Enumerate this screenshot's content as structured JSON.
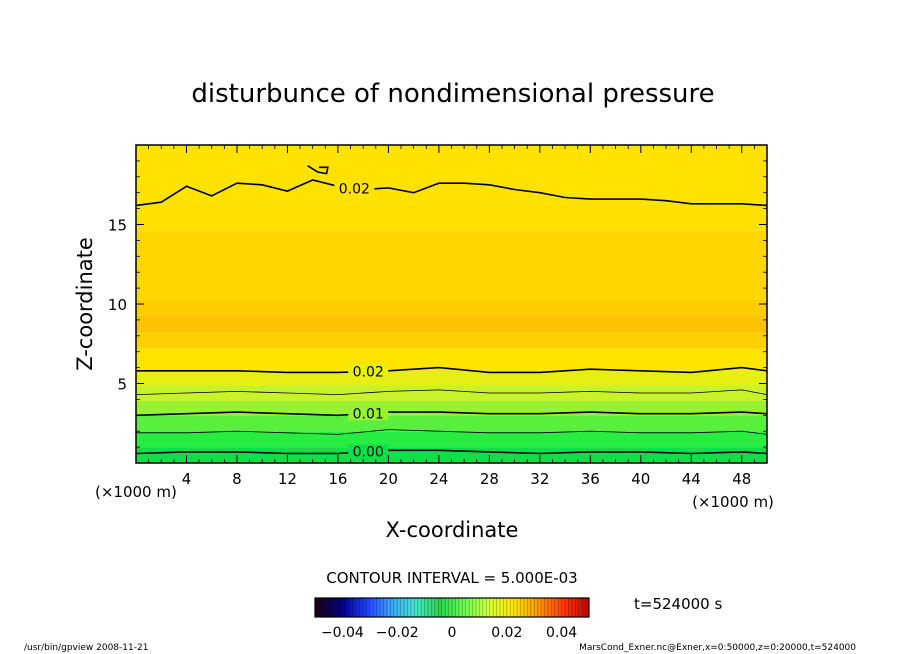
{
  "chart_data": {
    "type": "contour",
    "title": "disturbunce of nondimensional pressure",
    "xlabel": "X-coordinate",
    "ylabel": "Z-coordinate",
    "x_unit": "(×1000 m)",
    "y_unit": "(×1000 m)",
    "xlim": [
      0,
      50
    ],
    "ylim": [
      0,
      20
    ],
    "x_ticks": [
      4,
      8,
      12,
      16,
      20,
      24,
      28,
      32,
      36,
      40,
      44,
      48
    ],
    "y_ticks": [
      5,
      10,
      15
    ],
    "contour_interval_text": "CONTOUR INTERVAL = 5.000E-03",
    "time_label": "t=524000 s",
    "colorbar": {
      "labels": [
        "−0.04",
        "−0.02",
        "0",
        "0.02",
        "0.04"
      ],
      "colors": [
        "#1a001a",
        "#000080",
        "#1e3cff",
        "#3ca0ff",
        "#46e6d2",
        "#2ad24a",
        "#64ff50",
        "#d2ff3c",
        "#ffe600",
        "#ff9600",
        "#ff3c00",
        "#c80000"
      ]
    },
    "fill_bands": [
      {
        "z_from": 0.0,
        "z_to": 1.0,
        "color": "#0ee04a"
      },
      {
        "z_from": 1.0,
        "z_to": 2.0,
        "color": "#28ec42"
      },
      {
        "z_from": 2.0,
        "z_to": 3.0,
        "color": "#58f03c"
      },
      {
        "z_from": 3.0,
        "z_to": 3.9,
        "color": "#98f232"
      },
      {
        "z_from": 3.9,
        "z_to": 4.9,
        "color": "#c8f22a"
      },
      {
        "z_from": 4.9,
        "z_to": 5.8,
        "color": "#e6ee14"
      },
      {
        "z_from": 5.8,
        "z_to": 7.2,
        "color": "#ffe400"
      },
      {
        "z_from": 7.2,
        "z_to": 8.2,
        "color": "#ffd000"
      },
      {
        "z_from": 8.2,
        "z_to": 9.3,
        "color": "#fcc400"
      },
      {
        "z_from": 9.3,
        "z_to": 10.3,
        "color": "#ffcc00"
      },
      {
        "z_from": 10.3,
        "z_to": 14.6,
        "color": "#ffd600"
      },
      {
        "z_from": 14.6,
        "z_to": 16.3,
        "color": "#ffe000"
      },
      {
        "z_from": 16.3,
        "z_to": 20.0,
        "color": "#ffe200"
      }
    ],
    "contours": [
      {
        "level": "0.00",
        "label": "0.00",
        "bold": true,
        "label_x": 18.4,
        "x": [
          0,
          4,
          8,
          12,
          16,
          20,
          24,
          28,
          32,
          36,
          40,
          44,
          48,
          50
        ],
        "z": [
          0.6,
          0.7,
          0.7,
          0.6,
          0.6,
          0.8,
          0.8,
          0.7,
          0.6,
          0.7,
          0.7,
          0.6,
          0.7,
          0.6
        ]
      },
      {
        "level": "0.005",
        "label": "",
        "bold": false,
        "label_x": 0,
        "x": [
          0,
          4,
          8,
          12,
          16,
          20,
          24,
          28,
          32,
          36,
          40,
          44,
          48,
          50
        ],
        "z": [
          1.9,
          1.9,
          2.0,
          1.9,
          1.8,
          2.1,
          2.0,
          1.9,
          1.9,
          2.0,
          1.9,
          1.9,
          2.0,
          1.8
        ]
      },
      {
        "level": "0.01",
        "label": "0.01",
        "bold": true,
        "label_x": 18.4,
        "x": [
          0,
          4,
          8,
          12,
          16,
          20,
          24,
          28,
          32,
          36,
          40,
          44,
          48,
          50
        ],
        "z": [
          3.0,
          3.1,
          3.2,
          3.1,
          3.0,
          3.2,
          3.2,
          3.1,
          3.1,
          3.2,
          3.1,
          3.1,
          3.2,
          3.1
        ]
      },
      {
        "level": "0.015",
        "label": "",
        "bold": false,
        "label_x": 0,
        "x": [
          0,
          4,
          8,
          12,
          16,
          20,
          24,
          28,
          32,
          36,
          40,
          44,
          48,
          50
        ],
        "z": [
          4.3,
          4.4,
          4.5,
          4.4,
          4.3,
          4.5,
          4.6,
          4.4,
          4.4,
          4.5,
          4.4,
          4.4,
          4.6,
          4.3
        ]
      },
      {
        "level": "0.02",
        "label": "0.02",
        "bold": true,
        "label_x": 18.4,
        "x": [
          0,
          4,
          8,
          12,
          16,
          20,
          24,
          28,
          32,
          36,
          40,
          44,
          48,
          50
        ],
        "z": [
          5.8,
          5.8,
          5.8,
          5.7,
          5.7,
          5.8,
          6.0,
          5.7,
          5.7,
          5.9,
          5.8,
          5.7,
          6.0,
          5.8
        ]
      },
      {
        "level": "0.02",
        "label": "0.02",
        "bold": true,
        "label_x": 17.3,
        "x": [
          0,
          2,
          4,
          6,
          8,
          10,
          12,
          14,
          16,
          18,
          20,
          22,
          24,
          26,
          28,
          30,
          32,
          34,
          36,
          38,
          40,
          42,
          44,
          46,
          48,
          50
        ],
        "z": [
          16.2,
          16.4,
          17.4,
          16.8,
          17.6,
          17.5,
          17.1,
          17.8,
          17.4,
          17.2,
          17.3,
          17.0,
          17.6,
          17.6,
          17.5,
          17.2,
          17.0,
          16.7,
          16.6,
          16.6,
          16.6,
          16.5,
          16.3,
          16.3,
          16.3,
          16.2
        ]
      },
      {
        "level": "0.02",
        "label": "",
        "bold": true,
        "label_x": 0,
        "x": [
          13.6,
          14.4,
          15.1,
          15.2,
          14.5
        ],
        "z": [
          18.7,
          18.3,
          18.2,
          18.6,
          18.6
        ]
      }
    ]
  },
  "footer": {
    "left": "/usr/bin/gpview   2008-11-21",
    "right": "MarsCond_Exner.nc@Exner,x=0:50000,z=0:20000,t=524000"
  }
}
